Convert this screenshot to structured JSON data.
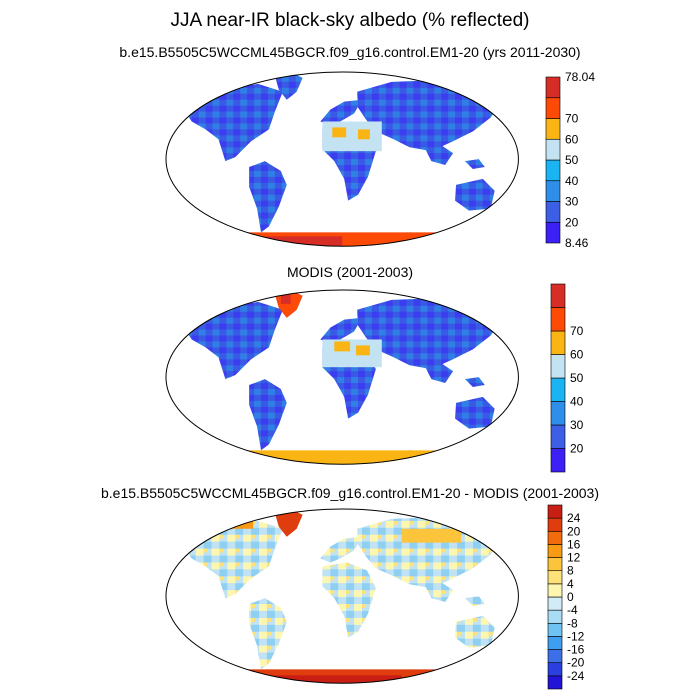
{
  "title": "JJA near-IR black-sky albedo (% reflected)",
  "panels": [
    {
      "subtitle": "b.e15.B5505C5WCCML45BGCR.f09_g16.control.EM1-20 (yrs 2011-2030)",
      "colorbar": {
        "colors": [
          "#3c20f5",
          "#3d5fe6",
          "#2f8fe8",
          "#1ab4f2",
          "#c4e3f2",
          "#fab514",
          "#fd4a06",
          "#d72d27"
        ],
        "labels": [
          "8.46",
          "20",
          "30",
          "40",
          "50",
          "60",
          "70",
          "78.04"
        ]
      }
    },
    {
      "subtitle": "MODIS (2001-2003)",
      "colorbar": {
        "colors": [
          "#3c20f5",
          "#3d5fe6",
          "#2f8fe8",
          "#1ab4f2",
          "#c4e3f2",
          "#fab514",
          "#fd4a06",
          "#d72d27"
        ],
        "labels": [
          "",
          "20",
          "30",
          "40",
          "50",
          "60",
          "70",
          ""
        ]
      }
    },
    {
      "subtitle": "b.e15.B5505C5WCCML45BGCR.f09_g16.control.EM1-20 - MODIS (2001-2003)",
      "colorbar": {
        "colors": [
          "#2312d8",
          "#2a3fe0",
          "#3d6fe8",
          "#3f9ef0",
          "#6fc3f2",
          "#a9dcf5",
          "#d2ecf7",
          "#fdf6b0",
          "#fde27a",
          "#fbc43a",
          "#f99a15",
          "#f26b0c",
          "#e03d0f",
          "#c91e14"
        ],
        "labels": [
          "-24",
          "-20",
          "-16",
          "-12",
          "-8",
          "-4",
          "0",
          "4",
          "8",
          "12",
          "16",
          "20",
          "24"
        ]
      }
    }
  ]
}
